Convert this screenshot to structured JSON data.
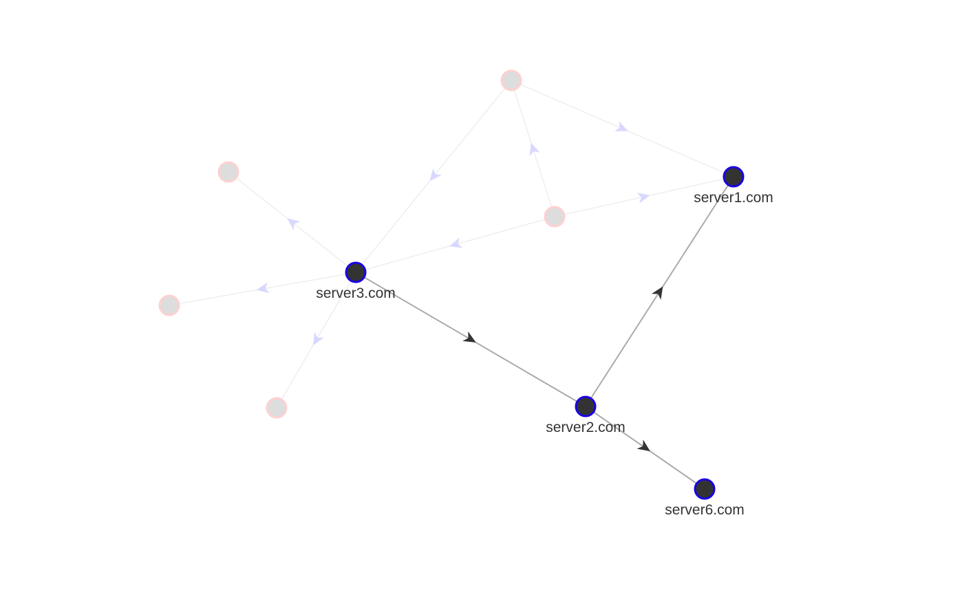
{
  "graph": {
    "colors": {
      "background": "#ffffff",
      "active_node_fill": "#333333",
      "active_node_stroke": "#1a00e6",
      "faded_node_fill": "#dddddd",
      "faded_node_stroke": "#ffd0d0",
      "active_edge": "#aaaaaa",
      "active_arrow": "#333333",
      "faded_edge": "#eeeeee",
      "faded_arrow": "#d8d8ff",
      "label": "#333333"
    },
    "nodes": [
      {
        "id": "server1",
        "label": "server1.com",
        "active": true
      },
      {
        "id": "server2",
        "label": "server2.com",
        "active": true
      },
      {
        "id": "server3",
        "label": "server3.com",
        "active": true
      },
      {
        "id": "server6",
        "label": "server6.com",
        "active": true
      },
      {
        "id": "n_top",
        "label": "",
        "active": false
      },
      {
        "id": "n_center",
        "label": "",
        "active": false
      },
      {
        "id": "n_left_upper",
        "label": "",
        "active": false
      },
      {
        "id": "n_left",
        "label": "",
        "active": false
      },
      {
        "id": "n_bottom_left",
        "label": "",
        "active": false
      }
    ],
    "edges": [
      {
        "source": "server3",
        "target": "server2",
        "active": true
      },
      {
        "source": "server2",
        "target": "server1",
        "active": true
      },
      {
        "source": "server2",
        "target": "server6",
        "active": true
      },
      {
        "source": "n_top",
        "target": "server1",
        "active": false
      },
      {
        "source": "n_top",
        "target": "server3",
        "active": false
      },
      {
        "source": "n_center",
        "target": "n_top",
        "active": false
      },
      {
        "source": "n_center",
        "target": "server1",
        "active": false
      },
      {
        "source": "n_center",
        "target": "server3",
        "active": false
      },
      {
        "source": "server3",
        "target": "n_left_upper",
        "active": false
      },
      {
        "source": "server3",
        "target": "n_left",
        "active": false
      },
      {
        "source": "server3",
        "target": "n_bottom_left",
        "active": false
      }
    ]
  }
}
